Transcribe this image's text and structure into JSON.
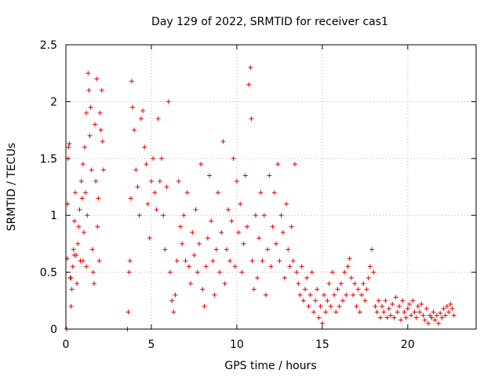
{
  "chart_data": {
    "type": "scatter",
    "title": "Day 129 of 2022, SRMTID for receiver cas1",
    "xlabel": "GPS time / hours",
    "ylabel": "SRMTID / TECUs",
    "xlim": [
      0,
      24
    ],
    "ylim": [
      0,
      2.5
    ],
    "xticks": [
      0,
      5,
      10,
      15,
      20
    ],
    "xtick_labels": [
      "0",
      "5",
      "10",
      "15",
      "20"
    ],
    "yticks": [
      0,
      0.5,
      1,
      1.5,
      2,
      2.5
    ],
    "ytick_labels": [
      "0",
      "0.5",
      "1",
      "1.5",
      "2",
      "2.5"
    ],
    "grid": true,
    "marker": "+",
    "series": [
      {
        "name": "SRMTID",
        "color": "#e00000",
        "points": [
          [
            0.05,
            0.0
          ],
          [
            0.08,
            0.62
          ],
          [
            0.1,
            1.1
          ],
          [
            0.12,
            1.5
          ],
          [
            0.15,
            1.6
          ],
          [
            0.2,
            1.63
          ],
          [
            0.25,
            0.45
          ],
          [
            0.3,
            0.2
          ],
          [
            0.35,
            0.35
          ],
          [
            0.4,
            0.55
          ],
          [
            0.45,
            0.7
          ],
          [
            0.5,
            0.95
          ],
          [
            0.55,
            1.2
          ],
          [
            0.6,
            0.65
          ],
          [
            0.65,
            0.4
          ],
          [
            0.7,
            0.75
          ],
          [
            0.75,
            0.9
          ],
          [
            0.8,
            1.05
          ],
          [
            0.85,
            0.6
          ],
          [
            0.9,
            1.3
          ],
          [
            0.95,
            1.15
          ],
          [
            1.0,
            1.45
          ],
          [
            1.05,
            0.85
          ],
          [
            1.1,
            1.6
          ],
          [
            1.15,
            1.2
          ],
          [
            1.2,
            1.9
          ],
          [
            1.25,
            1.0
          ],
          [
            1.3,
            2.25
          ],
          [
            1.35,
            2.1
          ],
          [
            1.4,
            1.7
          ],
          [
            1.45,
            1.95
          ],
          [
            1.5,
            1.4
          ],
          [
            1.55,
            0.7
          ],
          [
            1.6,
            0.5
          ],
          [
            1.65,
            0.4
          ],
          [
            1.7,
            1.8
          ],
          [
            1.75,
            1.3
          ],
          [
            1.8,
            2.2
          ],
          [
            1.85,
            0.9
          ],
          [
            1.9,
            1.15
          ],
          [
            1.95,
            0.6
          ],
          [
            2.0,
            1.9
          ],
          [
            2.05,
            1.75
          ],
          [
            2.1,
            2.1
          ],
          [
            2.15,
            1.65
          ],
          [
            2.2,
            1.4
          ],
          [
            1.0,
            0.6
          ],
          [
            1.2,
            0.55
          ],
          [
            0.5,
            0.65
          ],
          [
            0.3,
            0.45
          ],
          [
            3.6,
            0.0
          ],
          [
            3.65,
            0.15
          ],
          [
            3.7,
            0.5
          ],
          [
            3.75,
            0.6
          ],
          [
            3.8,
            1.15
          ],
          [
            3.85,
            2.18
          ],
          [
            3.9,
            1.95
          ],
          [
            4.0,
            1.75
          ],
          [
            4.1,
            1.4
          ],
          [
            4.2,
            1.25
          ],
          [
            4.3,
            1.0
          ],
          [
            4.4,
            1.85
          ],
          [
            4.5,
            1.92
          ],
          [
            4.6,
            1.6
          ],
          [
            4.7,
            1.45
          ],
          [
            4.8,
            1.1
          ],
          [
            4.9,
            0.8
          ],
          [
            5.0,
            1.3
          ],
          [
            5.1,
            1.5
          ],
          [
            5.2,
            1.2
          ],
          [
            5.3,
            1.05
          ],
          [
            5.4,
            1.85
          ],
          [
            5.5,
            1.3
          ],
          [
            5.6,
            1.5
          ],
          [
            5.7,
            1.0
          ],
          [
            5.8,
            0.7
          ],
          [
            5.9,
            1.25
          ],
          [
            6.0,
            2.0
          ],
          [
            6.1,
            0.5
          ],
          [
            6.2,
            0.25
          ],
          [
            6.3,
            0.15
          ],
          [
            6.4,
            0.3
          ],
          [
            6.5,
            0.6
          ],
          [
            6.6,
            1.3
          ],
          [
            6.7,
            0.9
          ],
          [
            6.8,
            0.75
          ],
          [
            6.9,
            1.0
          ],
          [
            7.0,
            0.6
          ],
          [
            7.1,
            1.2
          ],
          [
            7.2,
            0.55
          ],
          [
            7.3,
            0.4
          ],
          [
            7.4,
            0.85
          ],
          [
            7.5,
            0.65
          ],
          [
            7.6,
            1.05
          ],
          [
            7.7,
            0.5
          ],
          [
            7.8,
            0.75
          ],
          [
            7.9,
            1.45
          ],
          [
            8.0,
            0.35
          ],
          [
            8.1,
            0.2
          ],
          [
            8.2,
            0.55
          ],
          [
            8.3,
            0.8
          ],
          [
            8.4,
            1.35
          ],
          [
            8.5,
            0.95
          ],
          [
            8.6,
            0.6
          ],
          [
            8.7,
            0.3
          ],
          [
            8.8,
            0.7
          ],
          [
            8.9,
            1.2
          ],
          [
            9.0,
            0.5
          ],
          [
            9.1,
            0.85
          ],
          [
            9.2,
            1.65
          ],
          [
            9.3,
            0.4
          ],
          [
            9.4,
            0.7
          ],
          [
            9.5,
            1.05
          ],
          [
            9.6,
            0.6
          ],
          [
            9.7,
            0.95
          ],
          [
            9.8,
            1.5
          ],
          [
            9.9,
            0.55
          ],
          [
            10.0,
            1.3
          ],
          [
            10.1,
            0.85
          ],
          [
            10.2,
            1.1
          ],
          [
            10.3,
            0.5
          ],
          [
            10.4,
            0.75
          ],
          [
            10.5,
            1.35
          ],
          [
            10.6,
            0.9
          ],
          [
            10.7,
            2.15
          ],
          [
            10.8,
            2.3
          ],
          [
            10.85,
            1.85
          ],
          [
            10.9,
            0.6
          ],
          [
            11.0,
            0.35
          ],
          [
            11.1,
            1.0
          ],
          [
            11.2,
            0.45
          ],
          [
            11.3,
            0.8
          ],
          [
            11.4,
            1.2
          ],
          [
            11.5,
            0.6
          ],
          [
            11.6,
            1.0
          ],
          [
            11.7,
            0.3
          ],
          [
            11.8,
            0.7
          ],
          [
            11.9,
            1.35
          ],
          [
            12.0,
            0.55
          ],
          [
            12.1,
            0.9
          ],
          [
            12.2,
            1.2
          ],
          [
            12.3,
            0.75
          ],
          [
            12.4,
            1.45
          ],
          [
            12.5,
            0.6
          ],
          [
            12.6,
            1.0
          ],
          [
            12.7,
            0.85
          ],
          [
            12.8,
            0.45
          ],
          [
            12.9,
            1.1
          ],
          [
            13.0,
            0.7
          ],
          [
            13.1,
            0.55
          ],
          [
            13.2,
            0.9
          ],
          [
            13.3,
            0.6
          ],
          [
            13.4,
            1.45
          ],
          [
            13.5,
            0.5
          ],
          [
            13.6,
            0.4
          ],
          [
            13.7,
            0.3
          ],
          [
            13.8,
            0.55
          ],
          [
            13.9,
            0.25
          ],
          [
            14.0,
            0.35
          ],
          [
            14.1,
            0.45
          ],
          [
            14.2,
            0.2
          ],
          [
            14.3,
            0.3
          ],
          [
            14.4,
            0.5
          ],
          [
            14.5,
            0.15
          ],
          [
            14.6,
            0.25
          ],
          [
            14.7,
            0.35
          ],
          [
            14.8,
            0.1
          ],
          [
            14.9,
            0.2
          ],
          [
            15.0,
            0.05
          ],
          [
            15.1,
            0.3
          ],
          [
            15.2,
            0.15
          ],
          [
            15.3,
            0.25
          ],
          [
            15.4,
            0.4
          ],
          [
            15.5,
            0.2
          ],
          [
            15.6,
            0.5
          ],
          [
            15.7,
            0.3
          ],
          [
            15.8,
            0.15
          ],
          [
            15.9,
            0.35
          ],
          [
            16.0,
            0.2
          ],
          [
            16.1,
            0.4
          ],
          [
            16.2,
            0.25
          ],
          [
            16.3,
            0.5
          ],
          [
            16.4,
            0.3
          ],
          [
            16.5,
            0.55
          ],
          [
            16.6,
            0.62
          ],
          [
            16.7,
            0.45
          ],
          [
            16.8,
            0.3
          ],
          [
            16.9,
            0.4
          ],
          [
            17.0,
            0.2
          ],
          [
            17.1,
            0.35
          ],
          [
            17.2,
            0.15
          ],
          [
            17.3,
            0.3
          ],
          [
            17.4,
            0.4
          ],
          [
            17.5,
            0.25
          ],
          [
            17.6,
            0.35
          ],
          [
            17.7,
            0.45
          ],
          [
            17.8,
            0.55
          ],
          [
            17.9,
            0.7
          ],
          [
            18.0,
            0.5
          ],
          [
            18.1,
            0.2
          ],
          [
            18.2,
            0.15
          ],
          [
            18.3,
            0.25
          ],
          [
            18.4,
            0.1
          ],
          [
            18.5,
            0.2
          ],
          [
            18.6,
            0.15
          ],
          [
            18.7,
            0.25
          ],
          [
            18.8,
            0.1
          ],
          [
            18.9,
            0.18
          ],
          [
            19.0,
            0.12
          ],
          [
            19.1,
            0.22
          ],
          [
            19.2,
            0.1
          ],
          [
            19.3,
            0.28
          ],
          [
            19.4,
            0.15
          ],
          [
            19.5,
            0.2
          ],
          [
            19.6,
            0.08
          ],
          [
            19.7,
            0.25
          ],
          [
            19.8,
            0.15
          ],
          [
            19.9,
            0.1
          ],
          [
            20.0,
            0.18
          ],
          [
            20.1,
            0.22
          ],
          [
            20.2,
            0.12
          ],
          [
            20.3,
            0.25
          ],
          [
            20.4,
            0.15
          ],
          [
            20.5,
            0.1
          ],
          [
            20.6,
            0.2
          ],
          [
            20.7,
            0.15
          ],
          [
            20.8,
            0.22
          ],
          [
            20.9,
            0.12
          ],
          [
            21.0,
            0.08
          ],
          [
            21.1,
            0.18
          ],
          [
            21.2,
            0.05
          ],
          [
            21.3,
            0.12
          ],
          [
            21.4,
            0.1
          ],
          [
            21.5,
            0.15
          ],
          [
            21.6,
            0.08
          ],
          [
            21.7,
            0.12
          ],
          [
            21.8,
            0.05
          ],
          [
            21.9,
            0.14
          ],
          [
            22.0,
            0.1
          ],
          [
            22.1,
            0.18
          ],
          [
            22.2,
            0.12
          ],
          [
            22.3,
            0.2
          ],
          [
            22.4,
            0.15
          ],
          [
            22.5,
            0.22
          ],
          [
            22.6,
            0.18
          ],
          [
            22.7,
            0.12
          ]
        ]
      }
    ]
  }
}
